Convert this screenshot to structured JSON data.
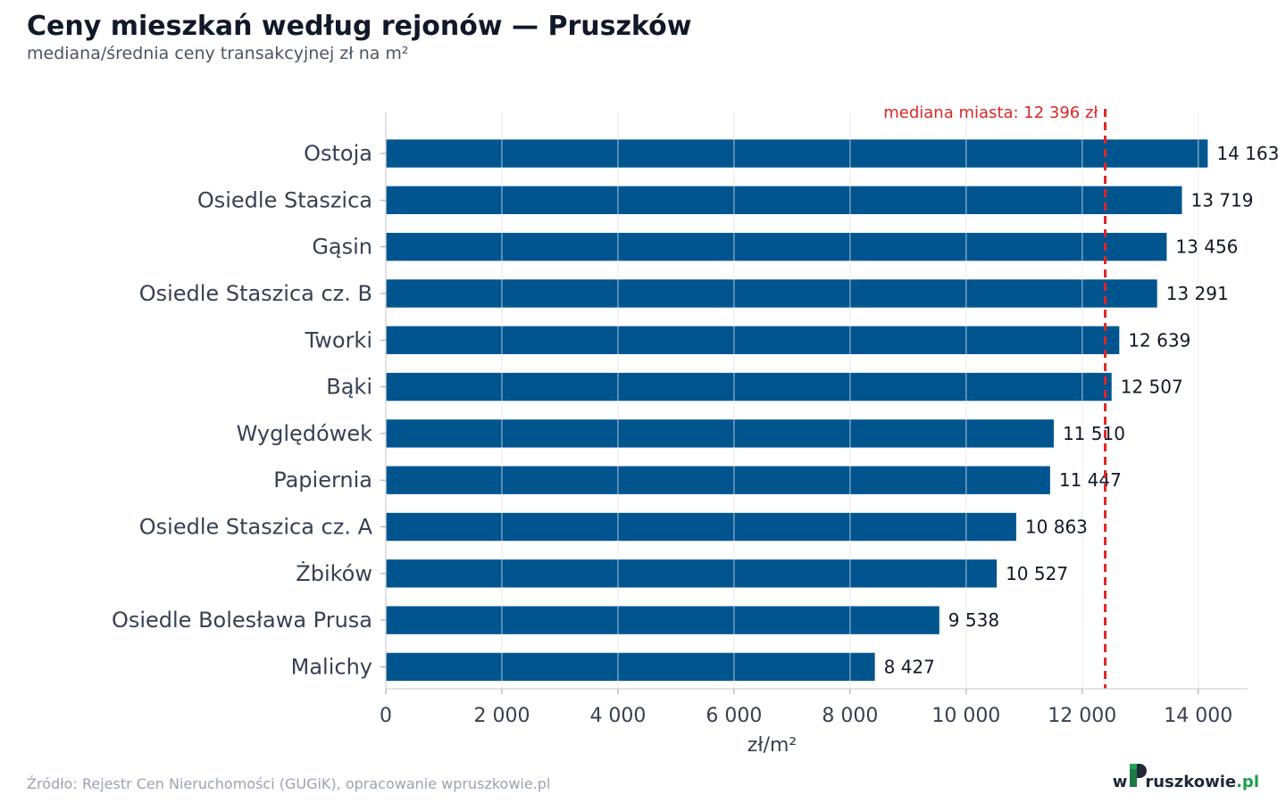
{
  "title": "Ceny mieszkań według rejonów — Pruszków",
  "subtitle": "mediana/średnia ceny transakcyjnej zł na m²",
  "source": "Źródło: Rejestr Cen Nieruchomości (GUGiK), opracowanie wpruszkowie.pl",
  "logo": {
    "prefix": "w",
    "middle": "ruszkowie",
    "suffix": ".pl"
  },
  "colors": {
    "bar": "#00558f",
    "median": "#dc2626",
    "grid": "#e5e7eb",
    "axis_text": "#374151"
  },
  "chart_data": {
    "type": "bar",
    "orientation": "horizontal",
    "categories": [
      "Ostoja",
      "Osiedle Staszica",
      "Gąsin",
      "Osiedle Staszica cz. B",
      "Tworki",
      "Bąki",
      "Wyględówek",
      "Papiernia",
      "Osiedle Staszica cz. A",
      "Żbików",
      "Osiedle Bolesława Prusa",
      "Malichy"
    ],
    "values": [
      14163,
      13719,
      13456,
      13291,
      12639,
      12507,
      11510,
      11447,
      10863,
      10527,
      9538,
      8427
    ],
    "value_labels": [
      "14 163",
      "13 719",
      "13 456",
      "13 291",
      "12 639",
      "12 507",
      "11 510",
      "11 447",
      "10 863",
      "10 527",
      "9 538",
      "8 427"
    ],
    "xlabel": "zł/m²",
    "ylabel": "",
    "xlim": [
      0,
      14850
    ],
    "xticks": [
      0,
      2000,
      4000,
      6000,
      8000,
      10000,
      12000,
      14000
    ],
    "xtick_labels": [
      "0",
      "2 000",
      "4 000",
      "6 000",
      "8 000",
      "10 000",
      "12 000",
      "14 000"
    ],
    "grid": "vertical",
    "reference_line": {
      "value": 12396,
      "label": "mediana miasta: 12 396 zł",
      "style": "dashed"
    }
  }
}
